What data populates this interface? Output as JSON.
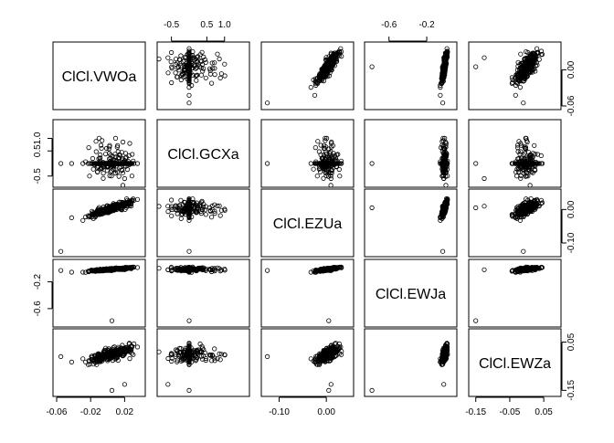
{
  "chart_data": {
    "type": "scatter",
    "kind": "scatterplot-matrix",
    "variables": [
      "ClCl.VWOa",
      "ClCl.GCXa",
      "ClCl.EZUa",
      "ClCl.EWJa",
      "ClCl.EWZa"
    ],
    "ranges": [
      [
        -0.06,
        0.04
      ],
      [
        -0.8,
        1.6
      ],
      [
        -0.13,
        0.05
      ],
      [
        -0.82,
        0.08
      ],
      [
        -0.16,
        0.09
      ]
    ],
    "ticks": [
      [
        "-0.06",
        "-0.02",
        "0.02"
      ],
      [
        "-0.5",
        "0.5",
        "1.0"
      ],
      [
        "-0.10",
        "0.00"
      ],
      [
        "-0.6",
        "-0.2"
      ],
      [
        "-0.15",
        "-0.05",
        "0.05"
      ]
    ],
    "right_ticks": [
      [
        "-0.06",
        "0.00"
      ],
      [
        "-0.5",
        "0.5",
        "1.0"
      ],
      [
        "-0.10",
        "0.00"
      ],
      [
        "-0.6",
        "-0.2"
      ],
      [
        "-0.15",
        "0.05"
      ]
    ],
    "axis_layout": {
      "bottom_axis_columns": [
        0,
        2,
        4
      ],
      "top_axis_columns": [
        1,
        3
      ],
      "left_axis_rows": [
        1,
        3
      ],
      "right_axis_rows": [
        0,
        2,
        4
      ]
    },
    "outliers": [
      {
        "VWOa": -0.055,
        "GCXa": 0.0,
        "EZUa": -0.125,
        "EWJa": -0.03,
        "EWZa": -0.01
      },
      {
        "VWOa": 0.005,
        "GCXa": 0.0,
        "EZUa": 0.005,
        "EWJa": -0.78,
        "EWZa": -0.15
      },
      {
        "VWOa": 0.02,
        "GCXa": -0.6,
        "EZUa": 0.01,
        "EWJa": -0.02,
        "EWZa": -0.125
      }
    ],
    "n_points": 320,
    "point_marker": "open circle",
    "grid": false,
    "legend": "none",
    "title": ""
  }
}
